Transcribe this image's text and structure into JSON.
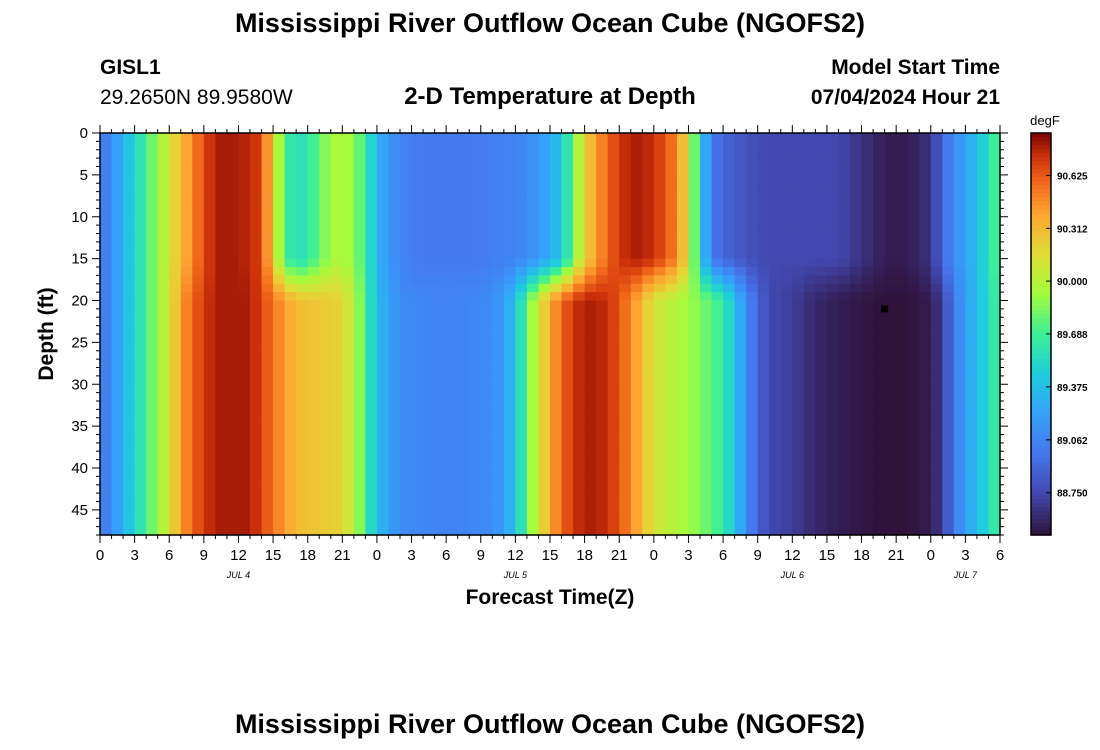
{
  "title": "Mississippi River Outflow Ocean Cube (NGOFS2)",
  "title_bottom": "Mississippi River Outflow Ocean Cube (NGOFS2)",
  "station": {
    "id": "GISL1",
    "coords": "29.2650N  89.9580W"
  },
  "subtitle": "2-D Temperature at Depth",
  "model_start": {
    "label": "Model Start Time",
    "value": "07/04/2024 Hour 21"
  },
  "chart_data": {
    "type": "heatmap",
    "xlabel": "Forecast Time(Z)",
    "ylabel": "Depth (ft)",
    "units": "degF",
    "x_hours_range": [
      0,
      78
    ],
    "x_tick_labels": [
      "0",
      "3",
      "6",
      "9",
      "12",
      "15",
      "18",
      "21",
      "0",
      "3",
      "6",
      "9",
      "12",
      "15",
      "18",
      "21",
      "0",
      "3",
      "6",
      "9",
      "12",
      "15",
      "18",
      "21",
      "0",
      "3",
      "6"
    ],
    "date_labels": [
      {
        "label": "JUL 4",
        "hour": 12
      },
      {
        "label": "JUL 5",
        "hour": 36
      },
      {
        "label": "JUL 6",
        "hour": 60
      },
      {
        "label": "JUL 7",
        "hour": 75
      }
    ],
    "ylim": [
      0,
      48
    ],
    "y_ticks": [
      0,
      5,
      10,
      15,
      20,
      25,
      30,
      35,
      40,
      45
    ],
    "colorbar": {
      "range": [
        88.5,
        90.875
      ],
      "tick_labels": [
        "90.625",
        "90.312",
        "90.000",
        "89.688",
        "89.375",
        "89.062",
        "88.750"
      ]
    },
    "marker": {
      "hour": 68,
      "depth": 21
    },
    "surface_profile": [
      [
        0,
        88.95
      ],
      [
        2,
        89.3
      ],
      [
        4,
        89.7
      ],
      [
        6,
        90.1
      ],
      [
        8,
        90.5
      ],
      [
        10,
        90.8
      ],
      [
        12,
        90.8
      ],
      [
        14,
        90.7
      ],
      [
        15,
        90.2
      ],
      [
        16,
        89.7
      ],
      [
        17,
        89.55
      ],
      [
        18,
        89.6
      ],
      [
        19,
        89.8
      ],
      [
        21,
        90.0
      ],
      [
        23,
        89.7
      ],
      [
        24,
        89.3
      ],
      [
        26,
        89.05
      ],
      [
        28,
        89.0
      ],
      [
        32,
        89.0
      ],
      [
        36,
        89.05
      ],
      [
        38,
        89.15
      ],
      [
        40,
        89.4
      ],
      [
        41,
        89.8
      ],
      [
        42,
        90.2
      ],
      [
        44,
        90.6
      ],
      [
        46,
        90.8
      ],
      [
        48,
        90.75
      ],
      [
        50,
        90.5
      ],
      [
        51,
        90.1
      ],
      [
        52,
        89.5
      ],
      [
        53,
        89.0
      ],
      [
        54,
        88.9
      ],
      [
        56,
        88.8
      ],
      [
        58,
        88.75
      ],
      [
        64,
        88.75
      ],
      [
        66,
        88.65
      ],
      [
        68,
        88.55
      ],
      [
        70,
        88.55
      ],
      [
        72,
        88.65
      ],
      [
        73,
        88.9
      ],
      [
        74,
        89.1
      ],
      [
        76,
        89.35
      ],
      [
        77,
        89.6
      ],
      [
        78,
        89.75
      ]
    ],
    "deep_profile": [
      [
        0,
        88.95
      ],
      [
        2,
        89.3
      ],
      [
        4,
        89.7
      ],
      [
        6,
        90.1
      ],
      [
        7,
        90.4
      ],
      [
        8,
        90.6
      ],
      [
        10,
        90.8
      ],
      [
        13,
        90.8
      ],
      [
        15,
        90.55
      ],
      [
        17,
        90.3
      ],
      [
        21,
        90.2
      ],
      [
        22,
        90.0
      ],
      [
        23,
        89.7
      ],
      [
        24,
        89.35
      ],
      [
        26,
        89.1
      ],
      [
        30,
        89.05
      ],
      [
        34,
        89.1
      ],
      [
        35,
        89.2
      ],
      [
        36,
        89.4
      ],
      [
        37,
        89.75
      ],
      [
        38,
        90.1
      ],
      [
        40,
        90.6
      ],
      [
        42,
        90.8
      ],
      [
        44,
        90.75
      ],
      [
        46,
        90.5
      ],
      [
        47,
        90.3
      ],
      [
        48,
        90.1
      ],
      [
        52,
        89.85
      ],
      [
        54,
        89.65
      ],
      [
        55,
        89.4
      ],
      [
        56,
        89.1
      ],
      [
        57,
        88.9
      ],
      [
        58,
        88.75
      ],
      [
        60,
        88.7
      ],
      [
        62,
        88.6
      ],
      [
        64,
        88.55
      ],
      [
        66,
        88.52
      ],
      [
        68,
        88.5
      ],
      [
        70,
        88.5
      ],
      [
        72,
        88.55
      ],
      [
        73,
        88.7
      ],
      [
        74,
        89.0
      ],
      [
        75,
        89.2
      ],
      [
        76,
        89.35
      ],
      [
        77,
        89.55
      ],
      [
        78,
        89.7
      ]
    ]
  }
}
